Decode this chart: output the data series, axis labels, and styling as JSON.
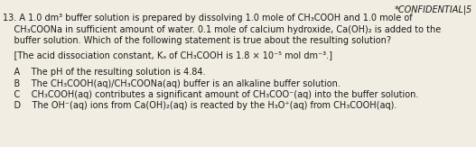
{
  "header": "*CONFIDENTIAL|5",
  "q_num": "13.",
  "line1": " A 1.0 dm³ buffer solution is prepared by dissolving 1.0 mole of CH₃COOH and 1.0 mole of",
  "line2": "    CH₃COONa in sufficient amount of water. 0.1 mole of calcium hydroxide, Ca(OH)₂ is added to the",
  "line3": "    buffer solution. Which of the following statement is true about the resulting solution?",
  "line4": "    [The acid dissociation constant, Kₐ of CH₃COOH is 1.8 × 10⁻⁵ mol dm⁻³.]",
  "line5": "    A    The pH of the resulting solution is 4.84.",
  "line6": "    B    The CH₃COOH(aq)/CH₃COONa(aq) buffer is an alkaline buffer solution.",
  "line7": "    C    CH₃COOH(aq) contributes a significant amount of CH₃COO⁻(aq) into the buffer solution.",
  "line8": "    D    The OH⁻(aq) ions from Ca(OH)₂(aq) is reacted by the H₃O⁺(aq) from CH₃COOH(aq).",
  "bg_color": "#f2ede3",
  "text_color": "#1a1a1a",
  "font_size": 7.0
}
